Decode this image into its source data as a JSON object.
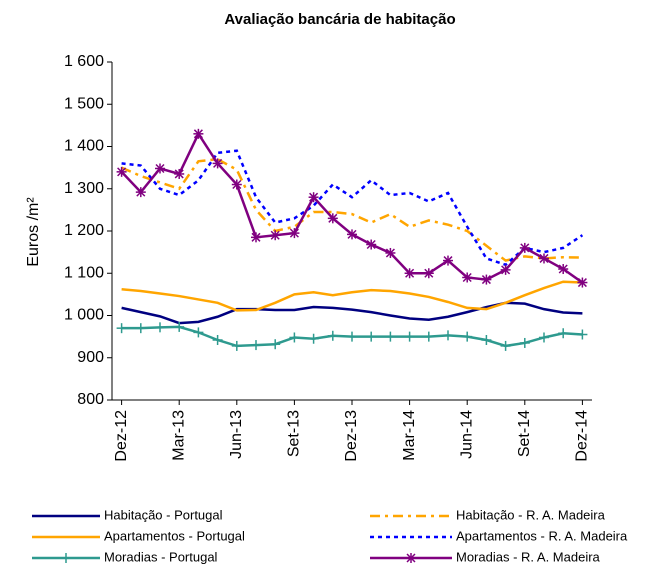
{
  "chart_data": {
    "type": "line",
    "title": "Avaliação bancária de habitação",
    "y_label": "Euros /m²",
    "categories": [
      "Dez-12",
      null,
      null,
      "Mar-13",
      null,
      null,
      "Jun-13",
      null,
      null,
      "Set-13",
      null,
      null,
      "Dez-13",
      null,
      null,
      "Mar-14",
      null,
      null,
      "Jun-14",
      null,
      null,
      "Set-14",
      null,
      null,
      "Dez-14"
    ],
    "ylim": [
      800,
      1600
    ],
    "yticks": [
      800,
      900,
      {
        "value": 1000,
        "label": "1 000"
      },
      {
        "value": 1100,
        "label": "1 100"
      },
      {
        "value": 1200,
        "label": "1 200"
      },
      {
        "value": 1300,
        "label": "1 300"
      },
      {
        "value": 1400,
        "label": "1 400"
      },
      {
        "value": 1500,
        "label": "1 500"
      },
      {
        "value": 1600,
        "label": "1 600"
      }
    ],
    "grid": false,
    "series": [
      {
        "name": "Habitação - Portugal",
        "color": "#000080",
        "dash": "solid",
        "marker": "none",
        "values": [
          1018,
          1008,
          998,
          982,
          985,
          997,
          1015,
          1015,
          1013,
          1013,
          1020,
          1018,
          1014,
          1008,
          1000,
          993,
          990,
          997,
          1008,
          1020,
          1030,
          1028,
          1015,
          1007,
          1005
        ]
      },
      {
        "name": "Apartamentos - Portugal",
        "color": "#ffa500",
        "dash": "solid",
        "marker": "none",
        "values": [
          1062,
          1058,
          1052,
          1046,
          1038,
          1030,
          1012,
          1013,
          1030,
          1050,
          1055,
          1048,
          1055,
          1060,
          1058,
          1052,
          1044,
          1032,
          1018,
          1015,
          1030,
          1048,
          1065,
          1080,
          1078
        ]
      },
      {
        "name": "Moradias - Portugal",
        "color": "#2e9a8f",
        "dash": "solid",
        "marker": "plus",
        "values": [
          970,
          970,
          972,
          973,
          960,
          942,
          928,
          930,
          932,
          948,
          945,
          952,
          950,
          950,
          950,
          950,
          950,
          953,
          950,
          942,
          928,
          935,
          948,
          958,
          955
        ]
      },
      {
        "name": "Habitação - R. A. Madeira",
        "color": "#ffa500",
        "dash": "dashdot",
        "marker": "none",
        "values": [
          1350,
          1330,
          1315,
          1300,
          1365,
          1370,
          1345,
          1250,
          1200,
          1210,
          1245,
          1245,
          1240,
          1220,
          1240,
          1210,
          1225,
          1215,
          1200,
          1165,
          1130,
          1140,
          1135,
          1138,
          1137
        ]
      },
      {
        "name": "Apartamentos - R. A. Madeira",
        "color": "#0000ff",
        "dash": "dotted",
        "marker": "none",
        "values": [
          1360,
          1355,
          1300,
          1285,
          1320,
          1385,
          1390,
          1280,
          1220,
          1230,
          1260,
          1310,
          1280,
          1320,
          1285,
          1290,
          1270,
          1290,
          1210,
          1135,
          1120,
          1160,
          1150,
          1160,
          1190
        ]
      },
      {
        "name": "Moradias - R. A. Madeira",
        "color": "#800080",
        "dash": "solid",
        "marker": "asterisk",
        "values": [
          1340,
          1292,
          1348,
          1335,
          1430,
          1360,
          1310,
          1185,
          1190,
          1195,
          1280,
          1230,
          1192,
          1168,
          1148,
          1100,
          1100,
          1130,
          1090,
          1085,
          1108,
          1160,
          1135,
          1110,
          1078
        ]
      }
    ]
  }
}
